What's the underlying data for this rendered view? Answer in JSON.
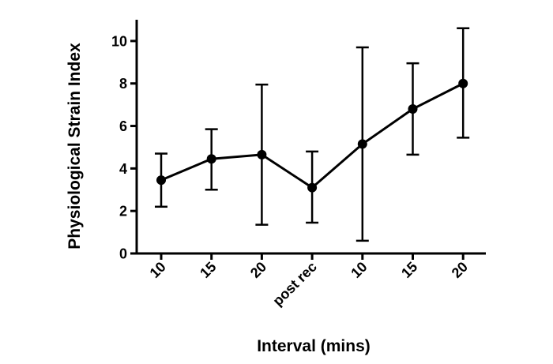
{
  "chart_data": {
    "type": "line",
    "xlabel": "Interval (mins)",
    "ylabel": "Physiological Strain Index",
    "categories": [
      "10",
      "15",
      "20",
      "post rec",
      "10",
      "15",
      "20"
    ],
    "ylim": [
      0,
      11
    ],
    "yticks": [
      0,
      2,
      4,
      6,
      8,
      10
    ],
    "series": [
      {
        "values": [
          3.45,
          4.45,
          4.65,
          3.1,
          5.15,
          6.8,
          8.0
        ],
        "err_low": [
          2.2,
          3.0,
          1.35,
          1.45,
          0.6,
          4.65,
          5.45
        ],
        "err_high": [
          4.7,
          5.85,
          7.95,
          4.8,
          9.7,
          8.95,
          10.6
        ]
      }
    ],
    "grid": false,
    "legend": "none"
  }
}
